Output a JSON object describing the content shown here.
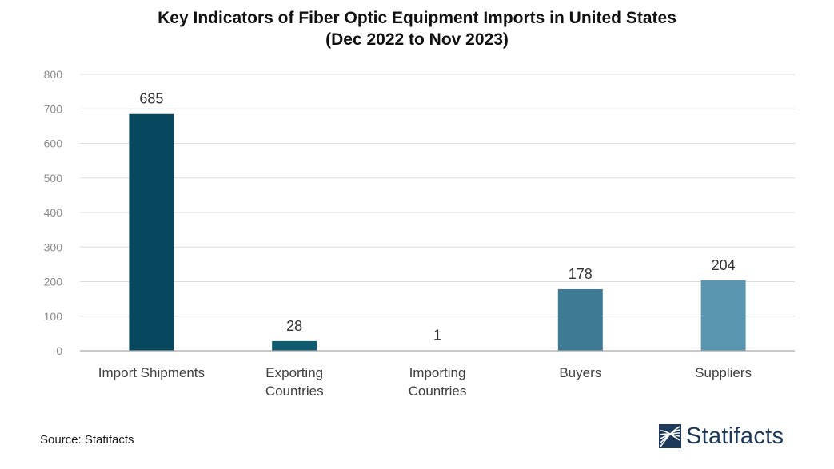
{
  "chart_data": {
    "type": "bar",
    "title": "Key Indicators of Fiber Optic Equipment Imports in United States",
    "subtitle": "(Dec 2022 to Nov 2023)",
    "categories": [
      [
        "Import Shipments"
      ],
      [
        "Exporting",
        "Countries"
      ],
      [
        "Importing",
        "Countries"
      ],
      [
        "Buyers"
      ],
      [
        "Suppliers"
      ]
    ],
    "values": [
      685,
      28,
      1,
      178,
      204
    ],
    "data_labels": [
      "685",
      "28",
      "1",
      "178",
      "204"
    ],
    "colors": [
      "#08485f",
      "#0f5b70",
      "#2b6f84",
      "#3f7a95",
      "#5b96b1"
    ],
    "yticks": [
      "0",
      "100",
      "200",
      "300",
      "400",
      "500",
      "600",
      "700",
      "800"
    ],
    "ylim": [
      0,
      800
    ],
    "grid": true,
    "xlabel": "",
    "ylabel": ""
  },
  "footer": {
    "source": "Source: Statifacts",
    "brand": "Statifacts"
  },
  "colors": {
    "grid": "#dcdcdc",
    "axis": "#a6a6a6",
    "tick_text": "#8c8c8c",
    "brand": "#1d3a5c"
  }
}
